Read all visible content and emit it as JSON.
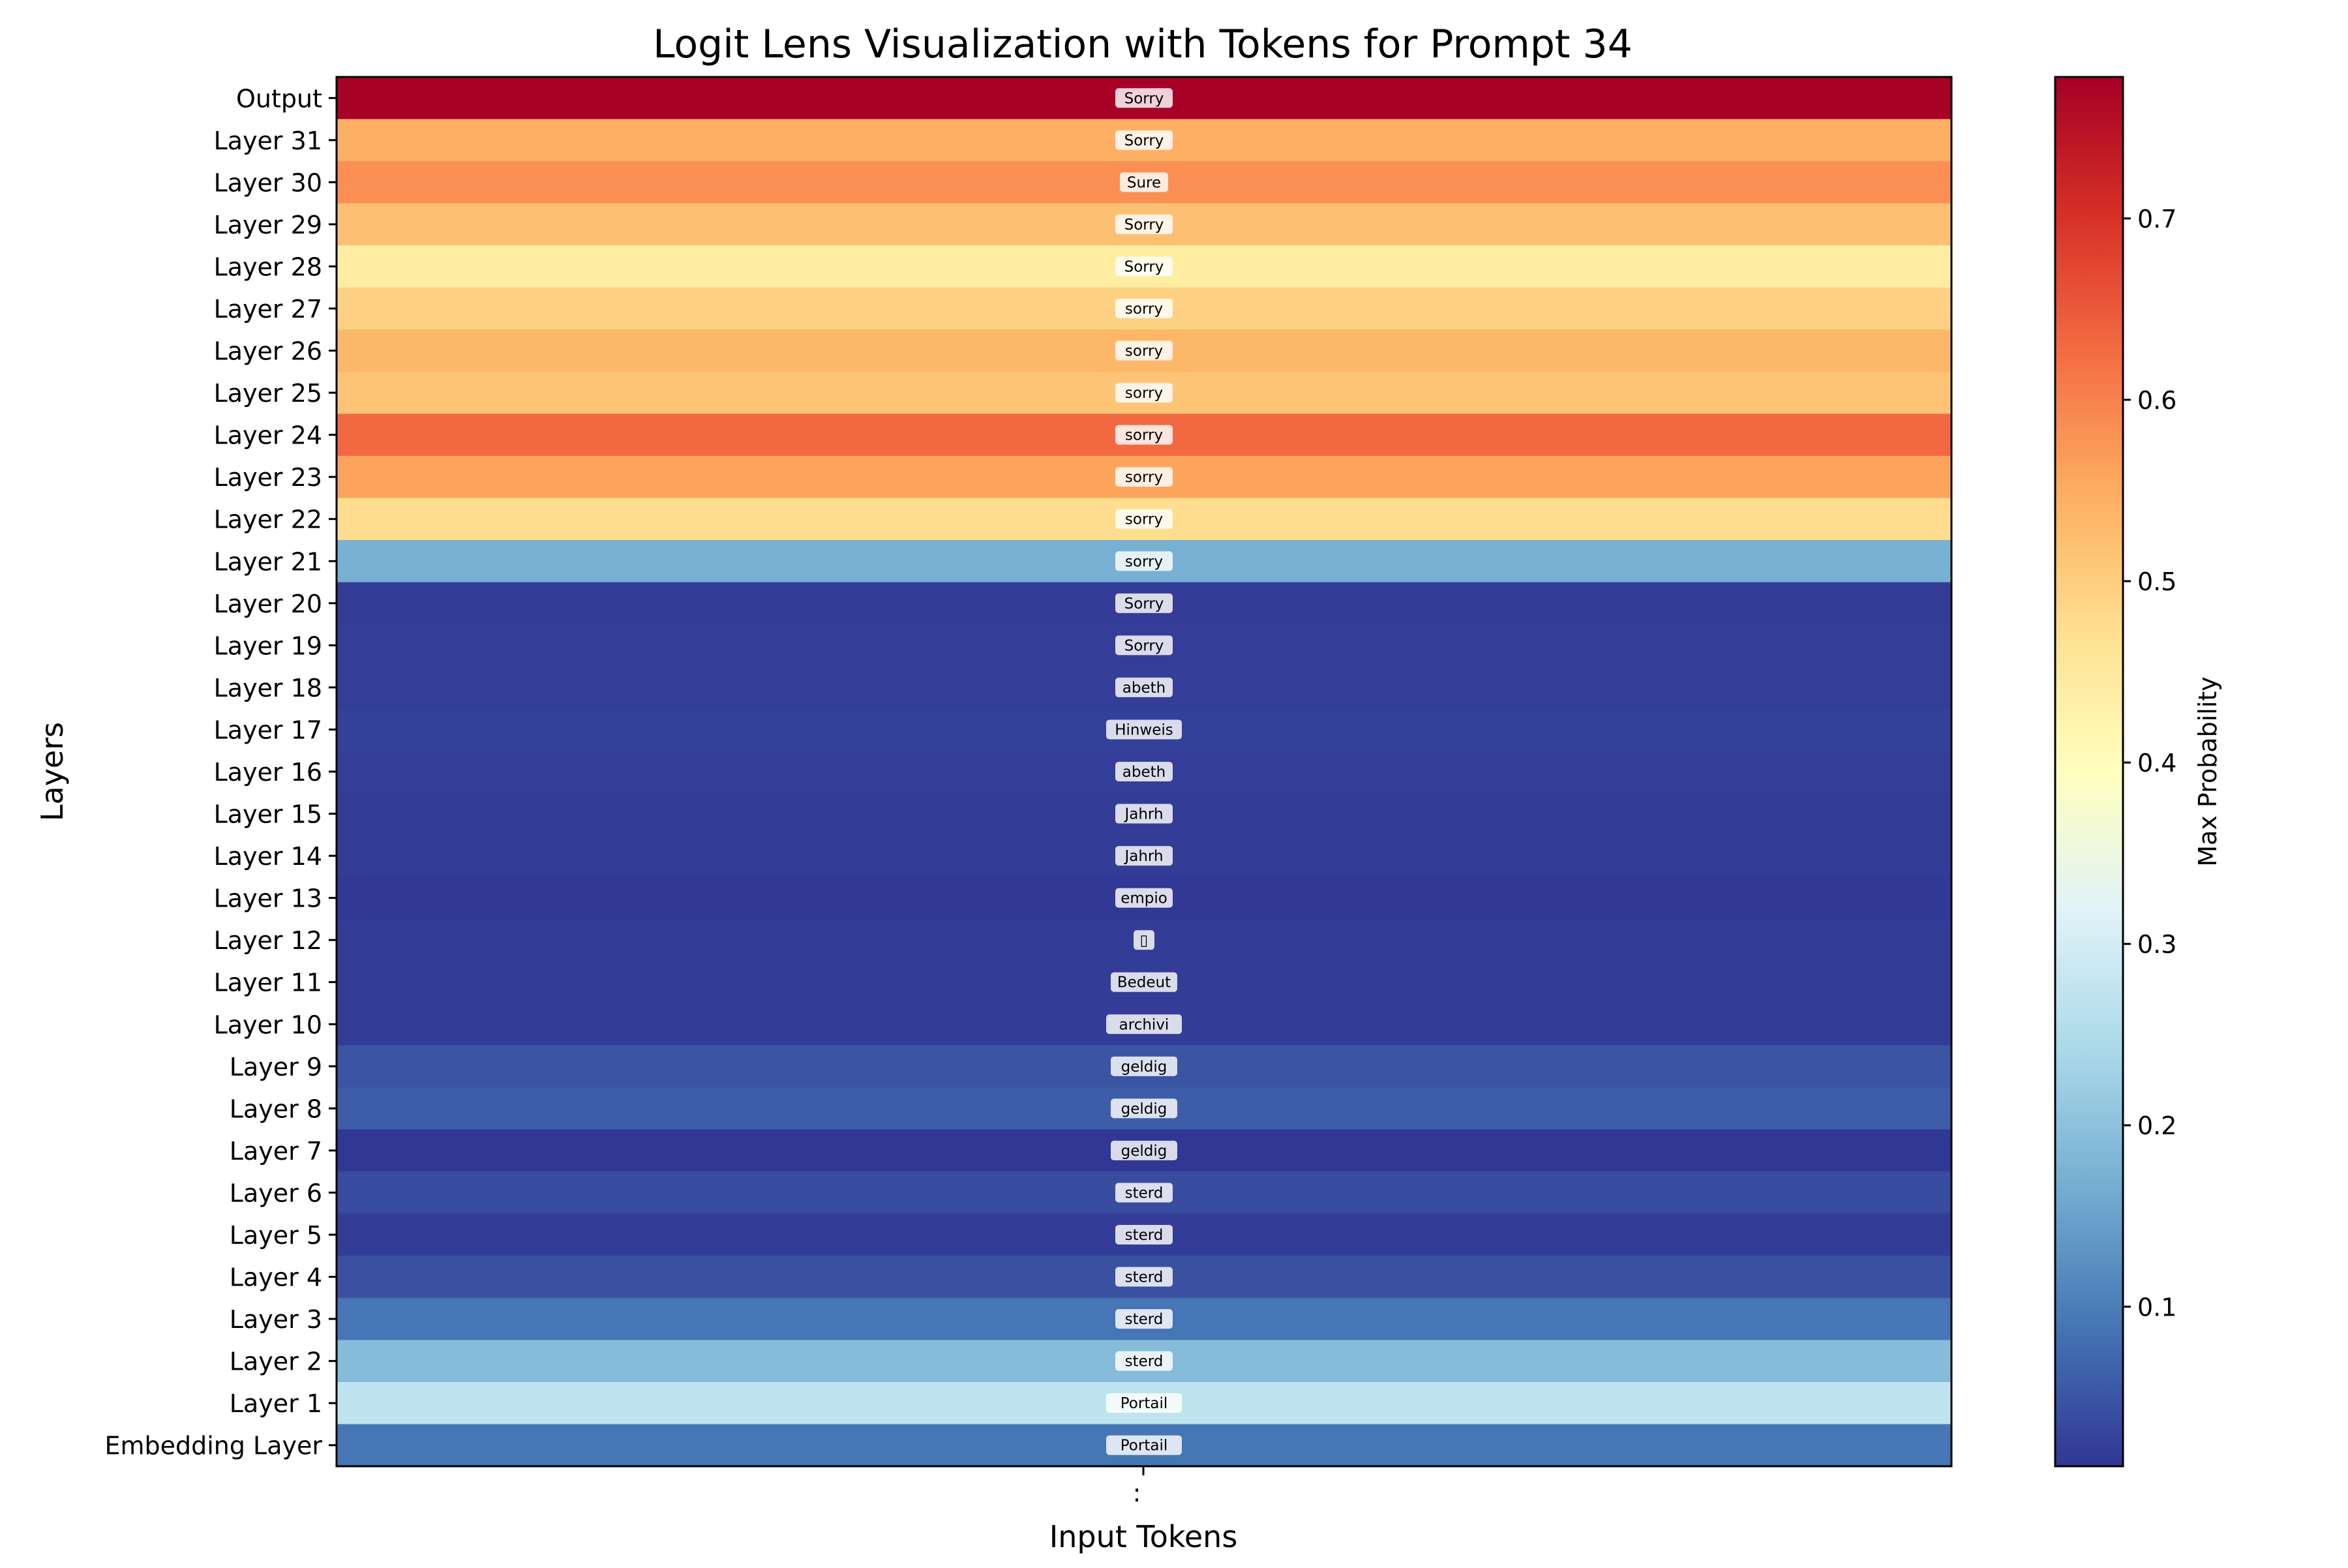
{
  "chart_data": {
    "type": "heatmap",
    "title": "Logit Lens Visualization with Tokens for Prompt 34",
    "xlabel": "Input Tokens",
    "ylabel": "Layers",
    "x_tick_labels": [
      ":"
    ],
    "colorbar": {
      "label": "Max Probability",
      "colormap": "RdYlBu_r",
      "range": [
        0.012,
        0.778
      ],
      "ticks": [
        0.1,
        0.2,
        0.3,
        0.4,
        0.5,
        0.6,
        0.7
      ],
      "tick_labels": [
        "0.1",
        "0.2",
        "0.3",
        "0.4",
        "0.5",
        "0.6",
        "0.7"
      ]
    },
    "rows": [
      {
        "layer": "Output",
        "token": "Sorry",
        "value": 0.775
      },
      {
        "layer": "Layer 31",
        "token": "Sorry",
        "value": 0.545
      },
      {
        "layer": "Layer 30",
        "token": "Sure",
        "value": 0.585
      },
      {
        "layer": "Layer 29",
        "token": "Sorry",
        "value": 0.52
      },
      {
        "layer": "Layer 28",
        "token": "Sorry",
        "value": 0.44
      },
      {
        "layer": "Layer 27",
        "token": "sorry",
        "value": 0.495
      },
      {
        "layer": "Layer 26",
        "token": "sorry",
        "value": 0.535
      },
      {
        "layer": "Layer 25",
        "token": "sorry",
        "value": 0.515
      },
      {
        "layer": "Layer 24",
        "token": "sorry",
        "value": 0.63
      },
      {
        "layer": "Layer 23",
        "token": "sorry",
        "value": 0.56
      },
      {
        "layer": "Layer 22",
        "token": "sorry",
        "value": 0.475
      },
      {
        "layer": "Layer 21",
        "token": "sorry",
        "value": 0.17
      },
      {
        "layer": "Layer 20",
        "token": "Sorry",
        "value": 0.02
      },
      {
        "layer": "Layer 19",
        "token": "Sorry",
        "value": 0.022
      },
      {
        "layer": "Layer 18",
        "token": "abeth",
        "value": 0.022
      },
      {
        "layer": "Layer 17",
        "token": "Hinweis",
        "value": 0.025
      },
      {
        "layer": "Layer 16",
        "token": "abeth",
        "value": 0.022
      },
      {
        "layer": "Layer 15",
        "token": "Jahrh",
        "value": 0.02
      },
      {
        "layer": "Layer 14",
        "token": "Jahrh",
        "value": 0.02
      },
      {
        "layer": "Layer 13",
        "token": "empio",
        "value": 0.015
      },
      {
        "layer": "Layer 12",
        "token": "▯",
        "value": 0.02
      },
      {
        "layer": "Layer 11",
        "token": "Bedeut",
        "value": 0.02
      },
      {
        "layer": "Layer 10",
        "token": "archivi",
        "value": 0.02
      },
      {
        "layer": "Layer 9",
        "token": "geldig",
        "value": 0.05
      },
      {
        "layer": "Layer 8",
        "token": "geldig",
        "value": 0.06
      },
      {
        "layer": "Layer 7",
        "token": "geldig",
        "value": 0.013
      },
      {
        "layer": "Layer 6",
        "token": "sterd",
        "value": 0.04
      },
      {
        "layer": "Layer 5",
        "token": "sterd",
        "value": 0.02
      },
      {
        "layer": "Layer 4",
        "token": "sterd",
        "value": 0.045
      },
      {
        "layer": "Layer 3",
        "token": "sterd",
        "value": 0.09
      },
      {
        "layer": "Layer 2",
        "token": "sterd",
        "value": 0.19
      },
      {
        "layer": "Layer 1",
        "token": "Portail",
        "value": 0.27
      },
      {
        "layer": "Embedding Layer",
        "token": "Portail",
        "value": 0.09
      }
    ]
  }
}
